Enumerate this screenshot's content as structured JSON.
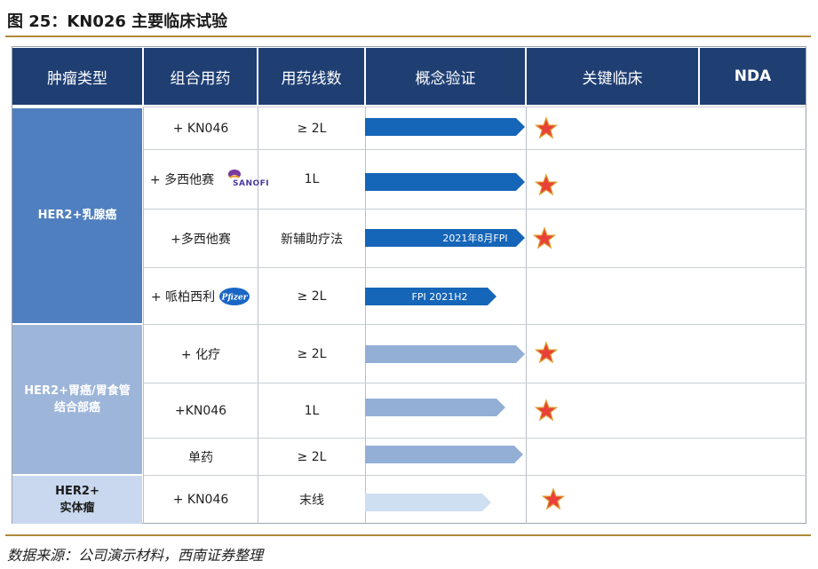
{
  "title": "图 25：KN026 主要临床试验",
  "source": "数据来源：公司演示材料，西南证券整理",
  "colors": {
    "header_bg": "#1f3f73",
    "breast": "#4f7fbf",
    "gastric": "#9db5d9",
    "solid": "#c9d8ee",
    "arrow_dark": "#1565b8",
    "arrow_mid": "#93afd6",
    "arrow_light": "#cfdff2",
    "star_fill": "#e8403a",
    "star_stroke": "#e09b2c"
  },
  "headers": [
    "肿瘤类型",
    "组合用药",
    "用药线数",
    "概念验证",
    "关键临床",
    "NDA"
  ],
  "groups": [
    {
      "label_line1": "HER2+乳腺癌",
      "label_line2": ""
    },
    {
      "label_line1": "HER2+胃癌/胃食管",
      "label_line2": "结合部癌"
    },
    {
      "label_line1": "HER2+",
      "label_line2": "实体瘤"
    }
  ],
  "rows": [
    {
      "combo": "+ KN046",
      "line": "≥ 2L",
      "logo": "",
      "arrow_label": "",
      "pivotal": true
    },
    {
      "combo": "+ 多西他赛",
      "line": "1L",
      "logo": "SANOFI",
      "arrow_label": "",
      "pivotal": true
    },
    {
      "combo": "+多西他赛",
      "line": "新辅助疗法",
      "logo": "",
      "arrow_label": "2021年8月FPI",
      "pivotal": true
    },
    {
      "combo": "+ 哌柏西利",
      "line": "≥ 2L",
      "logo": "Pfizer",
      "arrow_label": "FPI 2021H2",
      "pivotal": false
    },
    {
      "combo": "+ 化疗",
      "line": "≥ 2L",
      "logo": "",
      "arrow_label": "",
      "pivotal": true
    },
    {
      "combo": "+KN046",
      "line": "1L",
      "logo": "",
      "arrow_label": "",
      "pivotal": true
    },
    {
      "combo": "单药",
      "line": "≥ 2L",
      "logo": "",
      "arrow_label": "",
      "pivotal": false
    },
    {
      "combo": "+ KN046",
      "line": "末线",
      "logo": "",
      "arrow_label": "",
      "pivotal": true
    }
  ]
}
